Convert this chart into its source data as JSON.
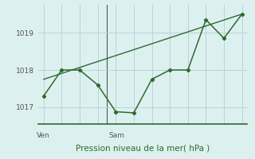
{
  "xlabel_bottom": "Pression niveau de la mer( hPa )",
  "background_color": "#ddf0f0",
  "grid_color": "#b8d4d4",
  "line_color": "#2d6a2d",
  "ylim": [
    1016.55,
    1019.75
  ],
  "yticks": [
    1017,
    1018,
    1019
  ],
  "zigzag_x": [
    0,
    1,
    2,
    3,
    4,
    5,
    6,
    7,
    8,
    9,
    10,
    11
  ],
  "zigzag_y": [
    1017.3,
    1018.0,
    1018.0,
    1017.6,
    1016.88,
    1016.85,
    1017.75,
    1018.0,
    1018.0,
    1019.35,
    1018.85,
    1019.5
  ],
  "trend_x": [
    0,
    11
  ],
  "trend_y": [
    1017.75,
    1019.5
  ],
  "xlim": [
    -0.3,
    11.3
  ],
  "num_xticks": 12,
  "ven_x_idx": 0,
  "sam_x_idx": 3,
  "ven_label": "Ven",
  "sam_label": "Sam",
  "day_line_color": "#555555",
  "label_color": "#2d6a2d",
  "tick_color": "#555555"
}
